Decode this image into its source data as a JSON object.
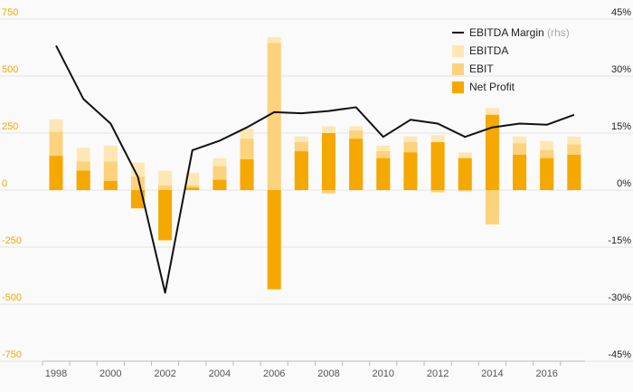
{
  "chart_data": {
    "type": "bar",
    "title": "",
    "xlabel": "",
    "ylabel": "",
    "categories": [
      "1998",
      "1999",
      "2000",
      "2001",
      "2002",
      "2003",
      "2004",
      "2005",
      "2006",
      "2007",
      "2008",
      "2009",
      "2010",
      "2011",
      "2012",
      "2013",
      "2014",
      "2015",
      "2016",
      "2017"
    ],
    "x_tick_labels": [
      "1998",
      "2000",
      "2002",
      "2004",
      "2006",
      "2008",
      "2010",
      "2012",
      "2014",
      "2016"
    ],
    "series": [
      {
        "name": "EBITDA",
        "type": "bar",
        "color": "#fde7b4",
        "values": [
          310,
          185,
          195,
          120,
          85,
          75,
          140,
          270,
          670,
          235,
          280,
          280,
          195,
          235,
          240,
          165,
          360,
          235,
          215,
          235
        ]
      },
      {
        "name": "EBIT",
        "type": "bar",
        "color": "#fcd27c",
        "values": [
          255,
          125,
          125,
          60,
          20,
          20,
          105,
          225,
          645,
          210,
          -15,
          260,
          170,
          210,
          -10,
          -5,
          -150,
          205,
          175,
          200
        ]
      },
      {
        "name": "Net Profit",
        "type": "bar",
        "color": "#f5a800",
        "values": [
          150,
          85,
          40,
          -80,
          -220,
          10,
          45,
          135,
          -435,
          170,
          250,
          225,
          140,
          165,
          210,
          140,
          330,
          155,
          140,
          155
        ]
      },
      {
        "name": "EBITDA Margin",
        "type": "line",
        "axis": "right",
        "color": "#111111",
        "values": [
          38,
          24,
          17.5,
          3.5,
          -27,
          10.5,
          13,
          16.5,
          20.5,
          20.2,
          20.8,
          21.8,
          14,
          18.5,
          17.5,
          14,
          16.5,
          17.5,
          17.2,
          19.8
        ]
      }
    ],
    "legend": [
      {
        "label": "EBITDA Margin",
        "note": "(rhs)",
        "kind": "line",
        "color": "#111111"
      },
      {
        "label": "EBITDA",
        "kind": "bar",
        "color": "#fde7b4"
      },
      {
        "label": "EBIT",
        "kind": "bar",
        "color": "#fcd27c"
      },
      {
        "label": "Net Profit",
        "kind": "bar",
        "color": "#f5a800"
      }
    ],
    "legend_position": "top-right",
    "y_left": {
      "ylim": [
        -750,
        750
      ],
      "ticks": [
        750,
        500,
        250,
        0,
        -250,
        -500,
        -750
      ],
      "tick_labels": [
        "750",
        "500",
        "250",
        "0",
        "-250",
        "-500",
        "-750"
      ],
      "color": "#f5a800"
    },
    "y_right": {
      "ylim": [
        -45,
        45
      ],
      "tick_labels": [
        "45%",
        "30%",
        "15%",
        "0%",
        "-15%",
        "-30%",
        "-45%"
      ],
      "color": "#222222"
    },
    "grid": true
  }
}
